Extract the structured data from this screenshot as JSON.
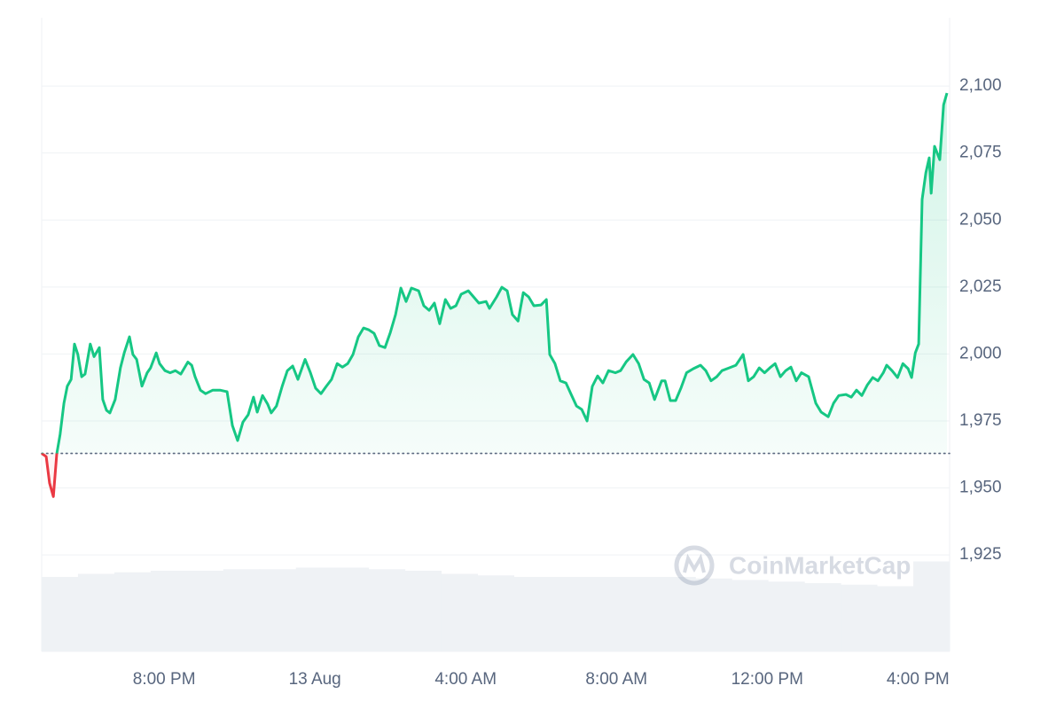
{
  "chart_data": {
    "type": "line",
    "watermark": "CoinMarketCap",
    "x": [
      16.75,
      16.87,
      16.96,
      17.06,
      17.15,
      17.24,
      17.34,
      17.43,
      17.53,
      17.62,
      17.71,
      17.81,
      17.9,
      18.04,
      18.14,
      18.28,
      18.37,
      18.47,
      18.56,
      18.7,
      18.84,
      18.94,
      19.08,
      19.17,
      19.27,
      19.41,
      19.55,
      19.64,
      19.79,
      19.88,
      20.02,
      20.16,
      20.3,
      20.44,
      20.63,
      20.73,
      20.82,
      20.96,
      21.1,
      21.29,
      21.48,
      21.67,
      21.81,
      21.95,
      22.09,
      22.23,
      22.37,
      22.47,
      22.61,
      22.75,
      22.84,
      22.98,
      23.13,
      23.27,
      23.41,
      23.55,
      23.74,
      23.88,
      24.02,
      24.16,
      24.3,
      24.44,
      24.59,
      24.73,
      24.87,
      25.01,
      25.15,
      25.29,
      25.43,
      25.57,
      25.71,
      25.86,
      26.0,
      26.14,
      26.28,
      26.42,
      26.56,
      26.75,
      26.89,
      27.03,
      27.17,
      27.31,
      27.46,
      27.6,
      27.74,
      27.88,
      28.07,
      28.21,
      28.35,
      28.54,
      28.63,
      28.82,
      28.96,
      29.1,
      29.24,
      29.39,
      29.53,
      29.67,
      29.81,
      30.0,
      30.14,
      30.23,
      30.37,
      30.51,
      30.66,
      30.8,
      30.94,
      31.08,
      31.22,
      31.36,
      31.5,
      31.64,
      31.79,
      31.97,
      32.11,
      32.26,
      32.44,
      32.59,
      32.73,
      32.87,
      33.01,
      33.2,
      33.29,
      33.43,
      33.57,
      33.71,
      33.86,
      34.04,
      34.23,
      34.37,
      34.51,
      34.66,
      34.8,
      34.99,
      35.17,
      35.36,
      35.5,
      35.64,
      35.79,
      35.93,
      36.07,
      36.21,
      36.35,
      36.49,
      36.63,
      36.77,
      36.91,
      37.1,
      37.29,
      37.43,
      37.62,
      37.76,
      37.9,
      38.09,
      38.23,
      38.37,
      38.51,
      38.66,
      38.8,
      38.94,
      39.08,
      39.17,
      39.31,
      39.46,
      39.6,
      39.74,
      39.83,
      39.93,
      40.02,
      40.11,
      40.21,
      40.3,
      40.35,
      40.44,
      40.58,
      40.68,
      40.77
    ],
    "series": [
      {
        "color": "#16c784",
        "below_color": "#ea3943",
        "values": [
          1962.9,
          1961.7,
          1951.8,
          1946.8,
          1962.7,
          1970,
          1981.6,
          1988,
          1990.5,
          2003.7,
          1999.8,
          1991.5,
          1992.5,
          2003.7,
          1999,
          2002.4,
          1983,
          1979,
          1978,
          1983,
          1994.8,
          2000.4,
          2006.4,
          1999.8,
          1998,
          1988,
          1993,
          1994.8,
          2000.4,
          1996.4,
          1993.8,
          1993,
          1993.8,
          1992.5,
          1997,
          1995.8,
          1991.5,
          1986.5,
          1985.2,
          1986.5,
          1986.5,
          1985.9,
          1973.3,
          1967.7,
          1974.6,
          1977.3,
          1983.9,
          1978.3,
          1984.5,
          1981.2,
          1978,
          1980.6,
          1987.9,
          1993.8,
          1995.5,
          1990.5,
          1998,
          1993,
          1987.2,
          1985.2,
          1987.9,
          1990.5,
          1996.4,
          1995.1,
          1996.4,
          1999.8,
          2006.4,
          2009.7,
          2009,
          2007.7,
          2003.1,
          2002.4,
          2008,
          2014.7,
          2024.6,
          2019.6,
          2024.6,
          2023.6,
          2018,
          2016.3,
          2019,
          2011.3,
          2020.3,
          2017,
          2018,
          2022.3,
          2023.6,
          2021.3,
          2019,
          2019.6,
          2017,
          2021.3,
          2024.9,
          2023.6,
          2014.7,
          2012.3,
          2022.9,
          2021.3,
          2018,
          2018.3,
          2020.3,
          1999.8,
          1996.4,
          1990,
          1989.2,
          1984.9,
          1980.6,
          1979.3,
          1975,
          1987.9,
          1991.8,
          1989.2,
          1993.8,
          1993,
          1993.8,
          1997.1,
          1999.8,
          1996.4,
          1990.5,
          1989.2,
          1983,
          1990,
          1990,
          1982.6,
          1982.6,
          1987.2,
          1993,
          1994.5,
          1995.8,
          1993.8,
          1990,
          1991.5,
          1993.8,
          1994.8,
          1995.8,
          1999.8,
          1990,
          1991.5,
          1994.8,
          1993,
          1994.8,
          1996.4,
          1991.5,
          1993.8,
          1995.1,
          1990,
          1993,
          1991.5,
          1981.6,
          1978.3,
          1976.6,
          1981.6,
          1984.5,
          1984.9,
          1983.9,
          1986.5,
          1984.5,
          1988.5,
          1991.2,
          1990,
          1993,
          1995.8,
          1993.8,
          1991.2,
          1996.4,
          1994.5,
          1991.2,
          2000.4,
          2003.7,
          2057.7,
          2067.6,
          2073.2,
          2060,
          2077.5,
          2072.5,
          2093,
          2097.4
        ]
      }
    ],
    "reference_line": 1962.9,
    "volume": {
      "color": "#eff2f5",
      "values": [
        48,
        50,
        51,
        52,
        52,
        53,
        53,
        54,
        54,
        53,
        52,
        50,
        49,
        48,
        48,
        48,
        48,
        48,
        47,
        46,
        45,
        44,
        43,
        42,
        58
      ],
      "lim": [
        0,
        100
      ]
    },
    "xlim": [
      16.75,
      40.84
    ],
    "xticks": [
      {
        "value": 20,
        "label": "8:00 PM"
      },
      {
        "value": 24,
        "label": "13 Aug"
      },
      {
        "value": 28,
        "label": "4:00 AM"
      },
      {
        "value": 32,
        "label": "8:00 AM"
      },
      {
        "value": 36,
        "label": "12:00 PM"
      },
      {
        "value": 40,
        "label": "4:00 PM"
      }
    ],
    "ylim": [
      1889,
      2125.5
    ],
    "yticks": [
      {
        "value": 1925,
        "label": "1,925"
      },
      {
        "value": 1950,
        "label": "1,950"
      },
      {
        "value": 1975,
        "label": "1,975"
      },
      {
        "value": 2000,
        "label": "2,000"
      },
      {
        "value": 2025,
        "label": "2,025"
      },
      {
        "value": 2050,
        "label": "2,050"
      },
      {
        "value": 2075,
        "label": "2,075"
      },
      {
        "value": 2100,
        "label": "2,100"
      }
    ],
    "grid": true
  }
}
